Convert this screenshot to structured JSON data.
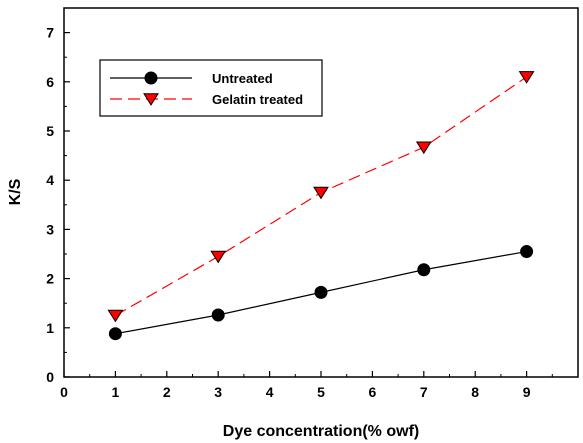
{
  "chart_data": {
    "type": "line",
    "xlabel": "Dye concentration(% owf)",
    "ylabel": "K/S",
    "xlim": [
      0,
      10
    ],
    "ylim": [
      0,
      7.5
    ],
    "xticks": [
      "0",
      "1",
      "2",
      "3",
      "4",
      "5",
      "6",
      "7",
      "8",
      "9"
    ],
    "yticks": [
      "0",
      "1",
      "2",
      "3",
      "4",
      "5",
      "6",
      "7"
    ],
    "x": [
      1,
      3,
      5,
      7,
      9
    ],
    "series": [
      {
        "name": "Untreated",
        "values": [
          0.88,
          1.26,
          1.72,
          2.18,
          2.55
        ],
        "color": "#000000",
        "marker": "circle",
        "line_style": "solid"
      },
      {
        "name": "Gelatin treated",
        "values": [
          1.25,
          2.45,
          3.75,
          4.67,
          6.1
        ],
        "color": "#ff0000",
        "marker_fill": "#ff0000",
        "marker": "triangle-down",
        "line_style": "dashed"
      }
    ],
    "legend_position": "top-left",
    "grid": false
  }
}
